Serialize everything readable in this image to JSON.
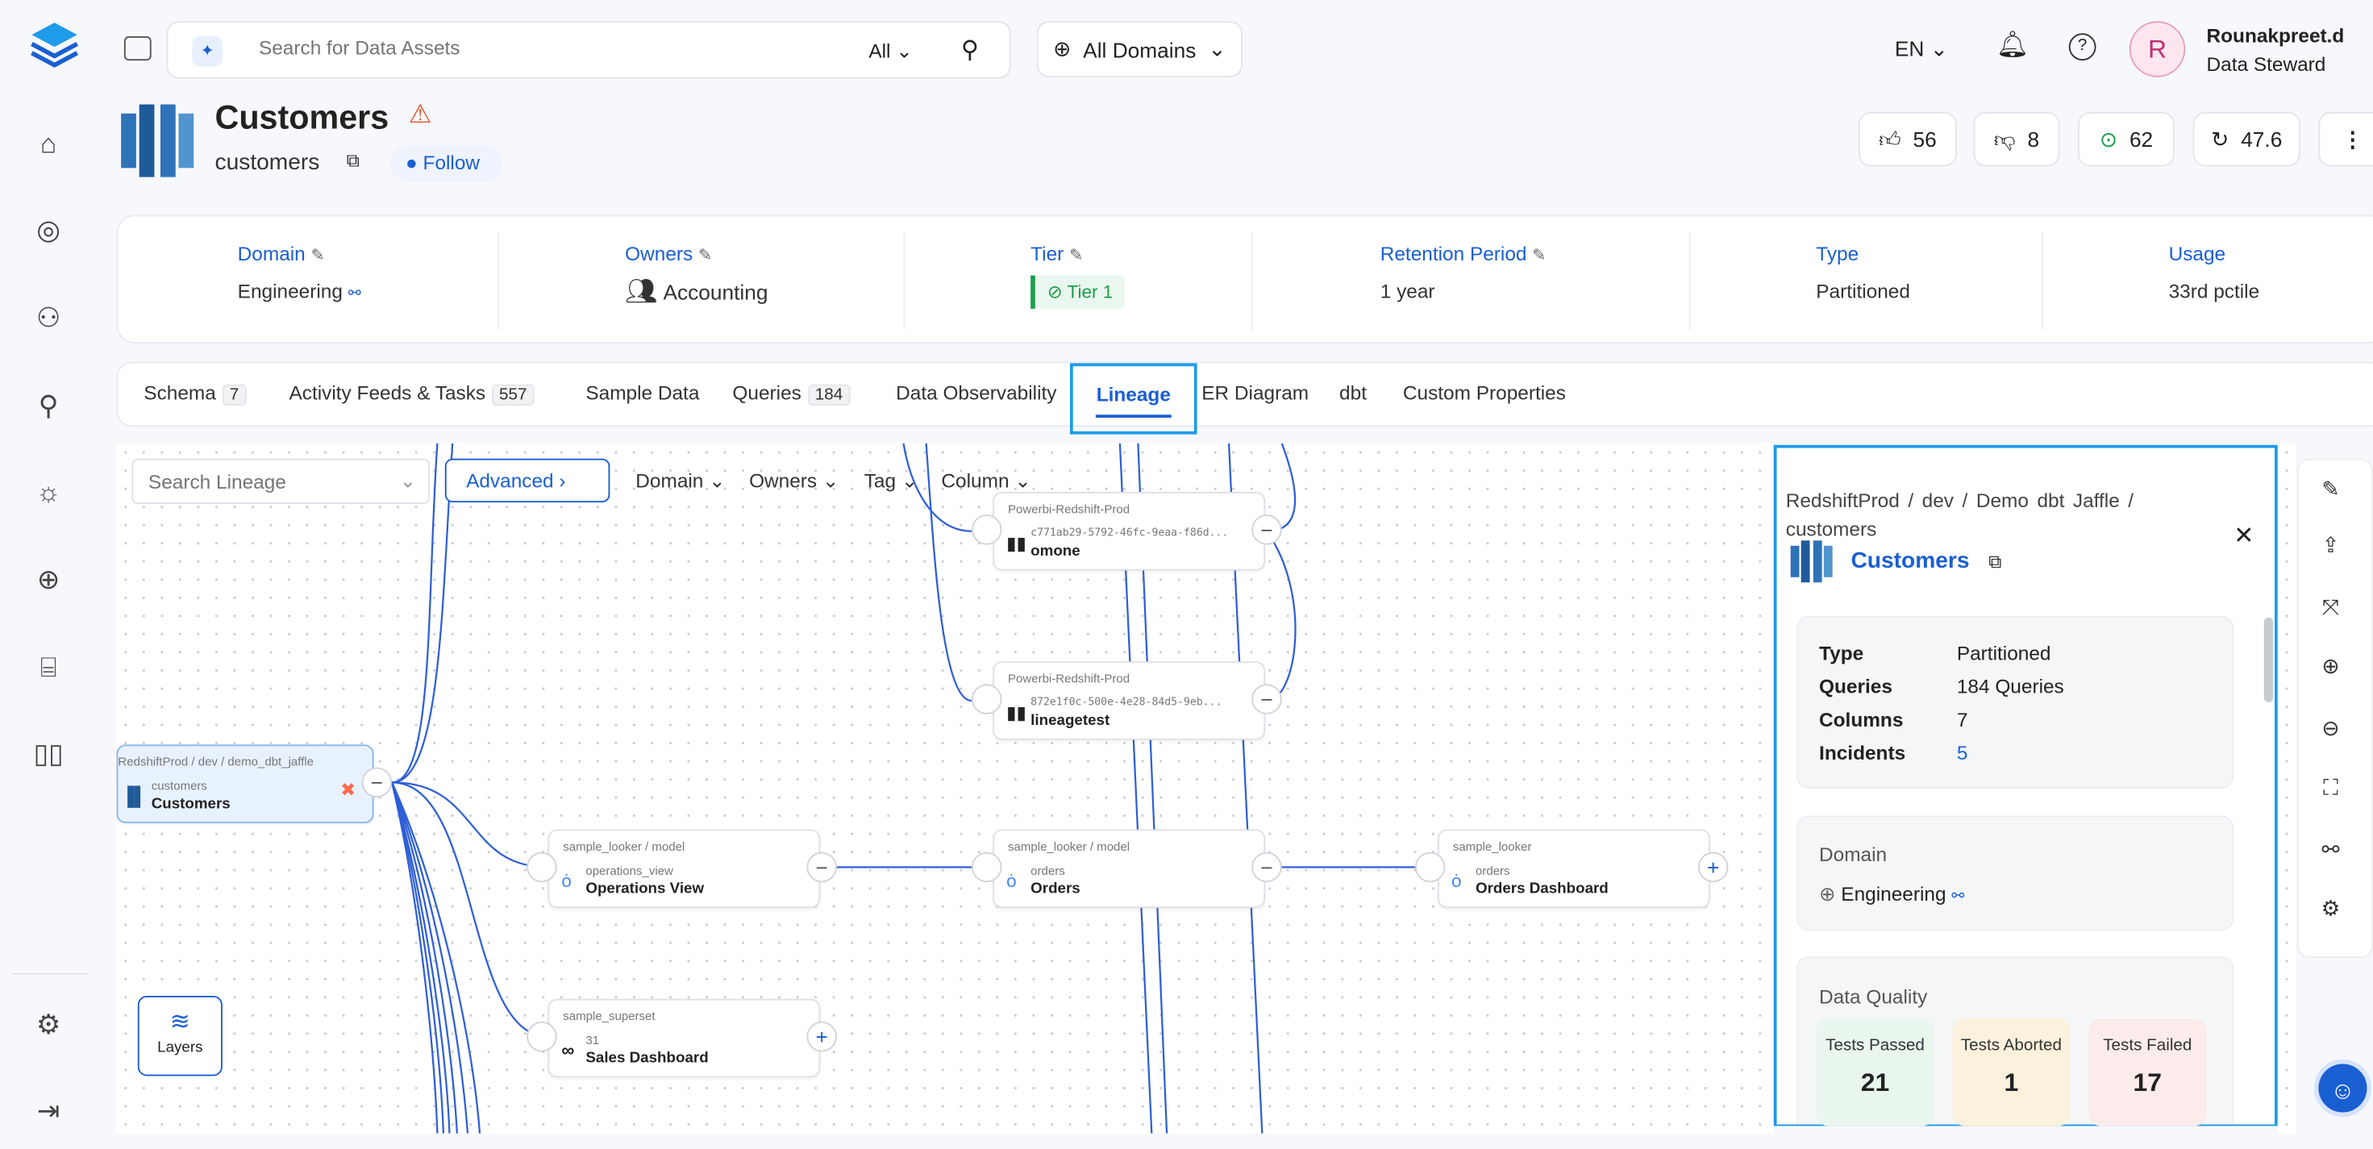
{
  "topbar": {
    "search_placeholder": "Search for Data Assets",
    "search_scope": "All",
    "domains": "All Domains",
    "language": "EN",
    "user_initial": "R",
    "user_name": "Rounakpreet.d",
    "user_role": "Data Steward"
  },
  "sidebar": {
    "items": [
      "home-icon",
      "explore-icon",
      "lineage-icon",
      "observability-icon",
      "insights-icon",
      "domains-icon",
      "governance-icon",
      "glossary-icon"
    ],
    "bottom": [
      "settings-icon",
      "logout-icon"
    ]
  },
  "header": {
    "title": "Customers",
    "fqn_name": "customers",
    "follow": "Follow",
    "likes": "56",
    "dislikes": "8",
    "tasks": "62",
    "version": "47.6"
  },
  "info": [
    {
      "label": "Domain",
      "value": "Engineering"
    },
    {
      "label": "Owners",
      "value": "Accounting"
    },
    {
      "label": "Tier",
      "value": "Tier 1"
    },
    {
      "label": "Retention Period",
      "value": "1 year"
    },
    {
      "label": "Type",
      "value": "Partitioned"
    },
    {
      "label": "Usage",
      "value": "33rd pctile"
    }
  ],
  "tabs": [
    {
      "label": "Schema",
      "count": "7"
    },
    {
      "label": "Activity Feeds & Tasks",
      "count": "557"
    },
    {
      "label": "Sample Data"
    },
    {
      "label": "Queries",
      "count": "184"
    },
    {
      "label": "Data Observability"
    },
    {
      "label": "Lineage",
      "active": true
    },
    {
      "label": "ER Diagram"
    },
    {
      "label": "dbt"
    },
    {
      "label": "Custom Properties"
    }
  ],
  "lineage": {
    "search_placeholder": "Search Lineage",
    "advanced": "Advanced",
    "filters": [
      "Domain",
      "Owners",
      "Tag",
      "Column"
    ],
    "layers": "Layers",
    "nodes": {
      "customers": {
        "path": "RedshiftProd / dev / demo_dbt_jaffle",
        "sub": "customers",
        "name": "Customers"
      },
      "omone": {
        "path": "Powerbi-Redshift-Prod",
        "sub": "c771ab29-5792-46fc-9eaa-f86d...",
        "name": "omone"
      },
      "lineagetest": {
        "path": "Powerbi-Redshift-Prod",
        "sub": "872e1f0c-500e-4e28-84d5-9eb...",
        "name": "lineagetest"
      },
      "operations": {
        "path": "sample_looker / model",
        "sub": "operations_view",
        "name": "Operations View"
      },
      "orders": {
        "path": "sample_looker / model",
        "sub": "orders",
        "name": "Orders"
      },
      "orders_dashboard": {
        "path": "sample_looker",
        "sub": "orders",
        "name": "Orders Dashboard"
      },
      "sales": {
        "path": "sample_superset",
        "sub": "31",
        "name": "Sales Dashboard"
      }
    }
  },
  "panel": {
    "breadcrumb": "RedshiftProd / dev / Demo dbt Jaffle / customers",
    "title": "Customers",
    "props": [
      {
        "k": "Type",
        "v": "Partitioned"
      },
      {
        "k": "Queries",
        "v": "184 Queries"
      },
      {
        "k": "Columns",
        "v": "7"
      },
      {
        "k": "Incidents",
        "v": "5"
      }
    ],
    "domain_label": "Domain",
    "domain_value": "Engineering",
    "dq_label": "Data Quality",
    "dq": [
      {
        "label": "Tests Passed",
        "value": "21",
        "color": "#e8f6ee"
      },
      {
        "label": "Tests Aborted",
        "value": "1",
        "color": "#fbf1dc"
      },
      {
        "label": "Tests Failed",
        "value": "17",
        "color": "#fbeceb"
      }
    ]
  },
  "colors": {
    "accent": "#1a5fd1",
    "highlight": "#1e9be9",
    "edge": "#2f5fd6"
  }
}
